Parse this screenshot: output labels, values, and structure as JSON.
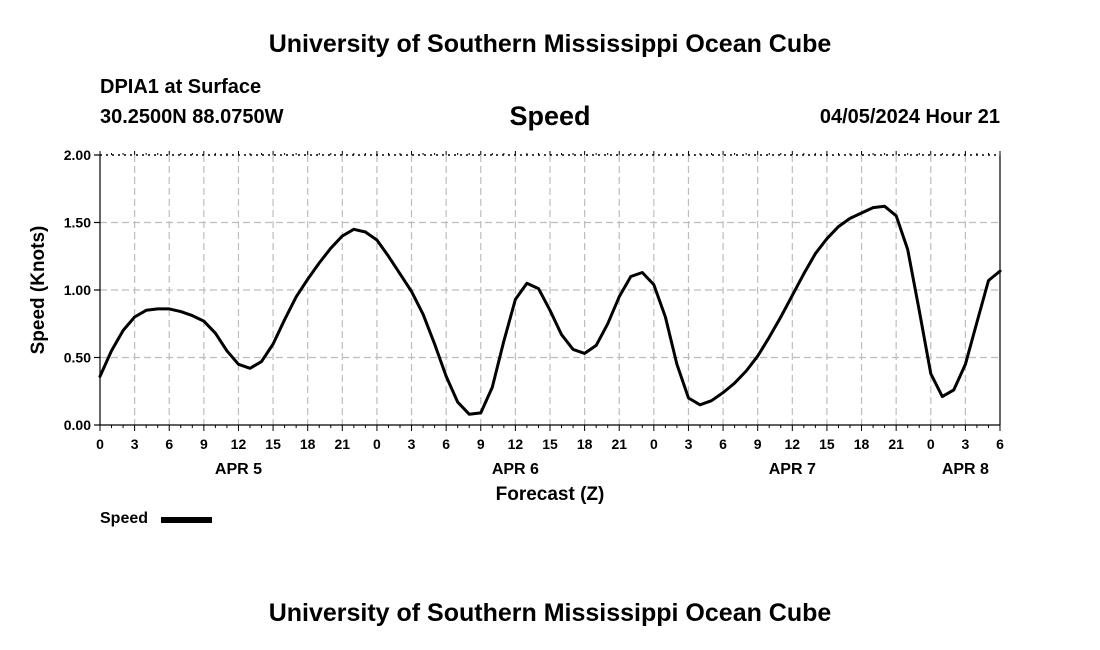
{
  "header": {
    "title": "University of Southern Mississippi Ocean Cube",
    "station": "DPIA1 at Surface",
    "coords": "30.2500N  88.0750W",
    "variable": "Speed",
    "datetime": "04/05/2024 Hour 21"
  },
  "footer": {
    "title": "University of Southern Mississippi Ocean Cube"
  },
  "legend": {
    "label": "Speed"
  },
  "chart_data": {
    "type": "line",
    "title": "Speed",
    "xlabel": "Forecast (Z)",
    "ylabel": "Speed (Knots)",
    "ylim": [
      0,
      2
    ],
    "xlim": [
      0,
      78
    ],
    "x_unit": "hours from APR 5 00Z",
    "yticks": [
      0,
      0.5,
      1.0,
      1.5,
      2.0
    ],
    "ytick_labels": [
      "0.00",
      "0.50",
      "1.00",
      "1.50",
      "2.00"
    ],
    "xtick_labels": [
      "0",
      "3",
      "6",
      "9",
      "12",
      "15",
      "18",
      "21",
      "0",
      "3",
      "6",
      "9",
      "12",
      "15",
      "18",
      "21",
      "0",
      "3",
      "6",
      "9",
      "12",
      "15",
      "18",
      "21",
      "0",
      "3",
      "6"
    ],
    "date_labels": [
      {
        "text": "APR 5",
        "hour": 12
      },
      {
        "text": "APR 6",
        "hour": 36
      },
      {
        "text": "APR 7",
        "hour": 60
      },
      {
        "text": "APR 8",
        "hour": 75
      }
    ],
    "grid": true,
    "legend_position": "bottom-left",
    "series": [
      {
        "name": "Speed",
        "color": "#000000",
        "x": [
          0,
          1,
          2,
          3,
          4,
          5,
          6,
          7,
          8,
          9,
          10,
          11,
          12,
          13,
          14,
          15,
          16,
          17,
          18,
          19,
          20,
          21,
          22,
          23,
          24,
          25,
          26,
          27,
          28,
          29,
          30,
          31,
          32,
          33,
          34,
          35,
          36,
          37,
          38,
          39,
          40,
          41,
          42,
          43,
          44,
          45,
          46,
          47,
          48,
          49,
          50,
          51,
          52,
          53,
          54,
          55,
          56,
          57,
          58,
          59,
          60,
          61,
          62,
          63,
          64,
          65,
          66,
          67,
          68,
          69,
          70,
          71,
          72,
          73,
          74,
          75,
          76,
          77,
          78
        ],
        "y": [
          0.36,
          0.55,
          0.7,
          0.8,
          0.85,
          0.86,
          0.86,
          0.84,
          0.81,
          0.77,
          0.68,
          0.55,
          0.45,
          0.42,
          0.47,
          0.6,
          0.78,
          0.95,
          1.08,
          1.2,
          1.31,
          1.4,
          1.45,
          1.43,
          1.37,
          1.25,
          1.12,
          0.99,
          0.82,
          0.6,
          0.36,
          0.17,
          0.08,
          0.09,
          0.28,
          0.62,
          0.93,
          1.05,
          1.01,
          0.85,
          0.67,
          0.56,
          0.53,
          0.59,
          0.75,
          0.95,
          1.1,
          1.13,
          1.04,
          0.8,
          0.45,
          0.2,
          0.15,
          0.18,
          0.24,
          0.31,
          0.4,
          0.51,
          0.65,
          0.8,
          0.96,
          1.12,
          1.27,
          1.38,
          1.47,
          1.53,
          1.57,
          1.61,
          1.62,
          1.55,
          1.3,
          0.85,
          0.38,
          0.21,
          0.26,
          0.45,
          0.76,
          1.07,
          1.14
        ]
      }
    ]
  }
}
